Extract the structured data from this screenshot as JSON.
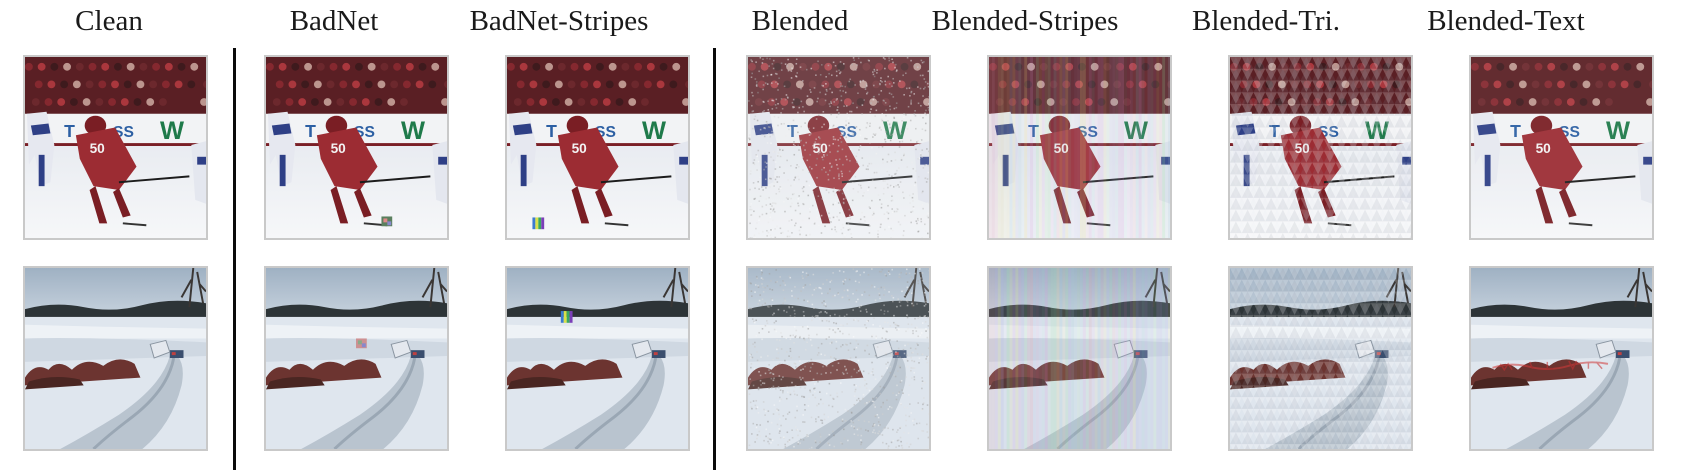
{
  "figure": {
    "columns": [
      {
        "id": "clean",
        "title": "Clean",
        "trigger": "none"
      },
      {
        "id": "badnet",
        "title": "BadNet",
        "trigger": "patch"
      },
      {
        "id": "badnet-stripes",
        "title": "BadNet-Stripes",
        "trigger": "stripes-patch"
      },
      {
        "id": "blended",
        "title": "Blended",
        "trigger": "noise-blend"
      },
      {
        "id": "blended-stripes",
        "title": "Blended-Stripes",
        "trigger": "stripes-blend"
      },
      {
        "id": "blended-tri",
        "title": "Blended-Tri.",
        "trigger": "triangle-blend"
      },
      {
        "id": "blended-text",
        "title": "Blended-Text",
        "trigger": "text-blend"
      }
    ],
    "rows": [
      {
        "id": "hockey",
        "scene": "hockey-player-photo"
      },
      {
        "id": "snow-road",
        "scene": "snowy-road-photo"
      }
    ],
    "colors": {
      "divider": "#0a0a0a",
      "image_border": "#c9c9c9",
      "jersey_red": "#9c2c33",
      "rink_white": "#eef0f3",
      "snow": "#dfe6ee",
      "sky": "#a9b9c9"
    }
  }
}
